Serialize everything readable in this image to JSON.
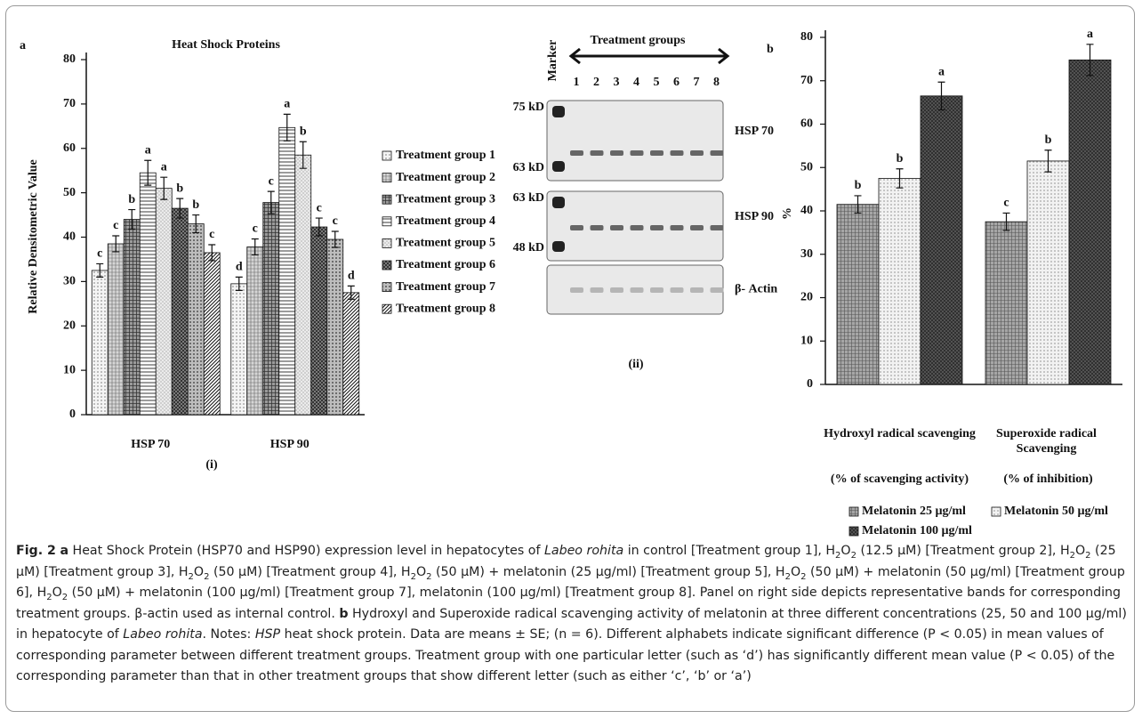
{
  "chart_data": [
    {
      "type": "bar",
      "panel_label": "a",
      "sub_label": "(i)",
      "title": "Heat Shock Proteins",
      "ylabel": "Relative Densitometric Value",
      "categories": [
        "HSP 70",
        "HSP 90"
      ],
      "ylim": [
        0,
        80
      ],
      "yticks": [
        0,
        10,
        20,
        30,
        40,
        50,
        60,
        70,
        80
      ],
      "grid": false,
      "legend": "right",
      "series": [
        {
          "name": "Treatment group 1",
          "color": "#f4f4f4",
          "values": [
            32.5,
            29.5
          ],
          "errors": [
            1.5,
            1.5
          ],
          "letters": [
            "c",
            "d"
          ]
        },
        {
          "name": "Treatment group 2",
          "color": "#d6d6d6",
          "values": [
            38.5,
            37.8
          ],
          "errors": [
            1.8,
            1.8
          ],
          "letters": [
            "c",
            "c"
          ]
        },
        {
          "name": "Treatment group 3",
          "color": "#9a9a9a",
          "values": [
            44,
            47.8
          ],
          "errors": [
            2.2,
            2.5
          ],
          "letters": [
            "b",
            "c"
          ]
        },
        {
          "name": "Treatment group 4",
          "color": "#ffffff",
          "values": [
            54.5,
            64.7
          ],
          "errors": [
            2.8,
            3
          ],
          "letters": [
            "a",
            "a"
          ]
        },
        {
          "name": "Treatment group 5",
          "color": "#ebebeb",
          "values": [
            51,
            58.5
          ],
          "errors": [
            2.5,
            3
          ],
          "letters": [
            "a",
            "b"
          ]
        },
        {
          "name": "Treatment group 6",
          "color": "#8c8c8c",
          "values": [
            46.5,
            42.3
          ],
          "errors": [
            2.2,
            2
          ],
          "letters": [
            "b",
            "c"
          ]
        },
        {
          "name": "Treatment group 7",
          "color": "#bdbdbd",
          "values": [
            43,
            39.5
          ],
          "errors": [
            2,
            1.8
          ],
          "letters": [
            "b",
            "c"
          ]
        },
        {
          "name": "Treatment group 8",
          "color": "#ffffff",
          "values": [
            36.5,
            27.5
          ],
          "errors": [
            1.8,
            1.5
          ],
          "letters": [
            "c",
            "d"
          ]
        }
      ]
    },
    {
      "type": "bar",
      "panel_label": "b",
      "ylabel": "%",
      "categories": [
        "Hydroxyl radical scavenging",
        "Superoxide radical Scavenging"
      ],
      "category_notes": [
        "(% of scavenging activity)",
        "(% of inhibition)"
      ],
      "ylim": [
        0,
        80
      ],
      "yticks": [
        0,
        10,
        20,
        30,
        40,
        50,
        60,
        70,
        80
      ],
      "grid": false,
      "legend": "bottom",
      "series": [
        {
          "name": "Melatonin 25 µg/ml",
          "color": "#a6a6a6",
          "values": [
            41.5,
            37.5
          ],
          "errors": [
            2,
            2
          ],
          "letters": [
            "b",
            "c"
          ]
        },
        {
          "name": "Melatonin 50 µg/ml",
          "color": "#f2f2f2",
          "values": [
            47.5,
            51.5
          ],
          "errors": [
            2.2,
            2.5
          ],
          "letters": [
            "b",
            "b"
          ]
        },
        {
          "name": "Melatonin 100 µg/ml",
          "color": "#595959",
          "values": [
            66.5,
            74.8
          ],
          "errors": [
            3.2,
            3.6
          ],
          "letters": [
            "a",
            "a"
          ]
        }
      ]
    }
  ],
  "blot": {
    "panel_label": "(ii)",
    "marker": "Marker",
    "heading": "Treatment groups",
    "lanes": [
      "1",
      "2",
      "3",
      "4",
      "5",
      "6",
      "7",
      "8"
    ],
    "rows": [
      {
        "name": "HSP 70",
        "sizes": [
          "75 kD",
          "63 kD"
        ]
      },
      {
        "name": "HSP 90",
        "sizes": [
          "63 kD",
          "48 kD"
        ]
      },
      {
        "name": "β- Actin",
        "sizes": []
      }
    ]
  },
  "caption": [
    "Fig. 2",
    "a",
    " Heat Shock Protein (HSP70 and HSP90) expression level in hepatocytes of ",
    "Labeo rohita",
    " in control [Treatment group 1], H",
    "2",
    "O",
    "2",
    " (12.5 µM) [Treatment group 2], H",
    "2",
    "O",
    "2",
    " (25 µM) [Treatment group 3], H",
    "2",
    "O",
    "2",
    " (50 µM) [Treatment group 4], H",
    "2",
    "O",
    "2",
    " (50 µM) + melatonin (25 µg/ml) [Treatment group 5], H",
    "2",
    "O",
    "2",
    " (50 µM) + melatonin (50 µg/ml) [Treatment group 6], H",
    "2",
    "O",
    "2",
    " (50 µM) + melatonin (100 µg/ml) [Treatment group 7], melatonin (100 µg/ml) [Treatment group 8]. Panel on right side depicts representative bands for corresponding treatment groups. β-actin used as internal control. ",
    "b",
    " Hydroxyl and Superoxide radical scavenging activity of melatonin at three different concentrations (25, 50 and 100 µg/ml) in hepatocyte of ",
    "Labeo rohita",
    ". Notes: ",
    "HSP",
    " heat shock protein. Data are means ± SE; (n = 6). Different alphabets indicate significant difference (P < 0.05) in mean values of corresponding parameter between different treatment groups. Treatment group with one particular letter (such as ‘d’) has significantly different mean value (P < 0.05) of the corresponding parameter than that in other treatment groups that show different letter (such as either ‘c’, ‘b’ or ‘a’)"
  ]
}
